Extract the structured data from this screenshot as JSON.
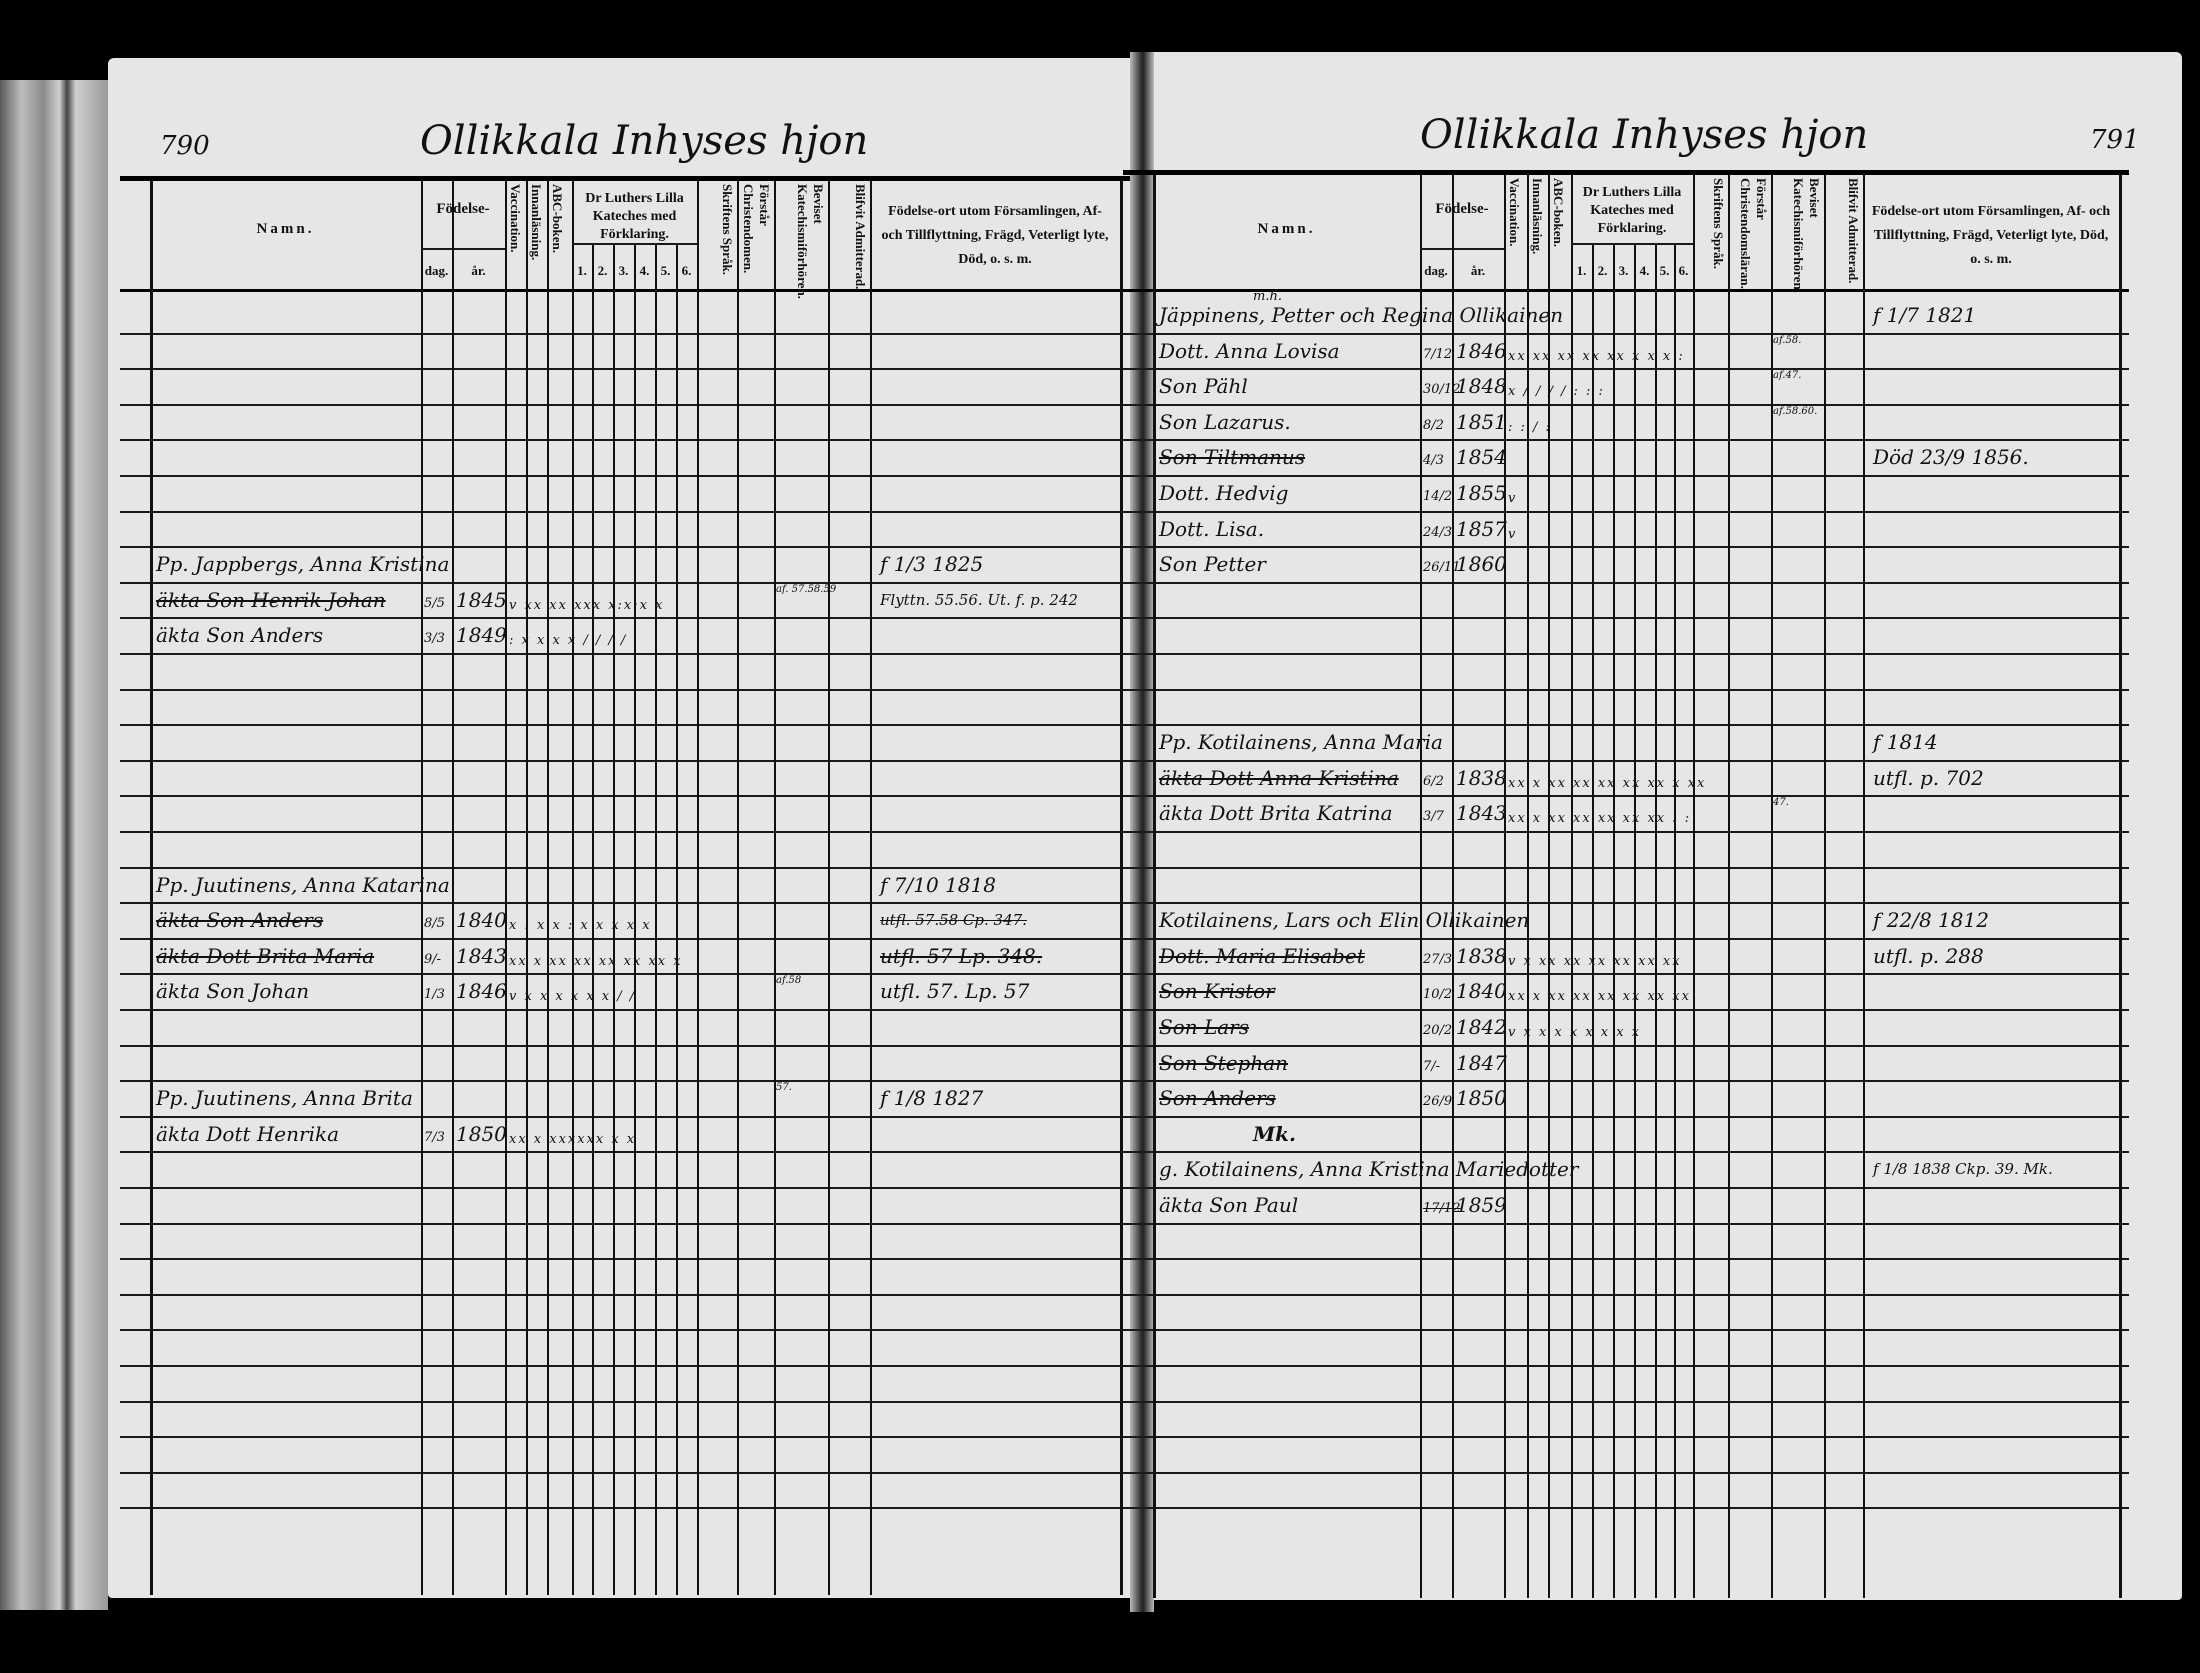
{
  "document": {
    "type": "parish catechetical register (husförhörslängd)",
    "paper_color": "#e6e6e4",
    "ink_color": "#111111"
  },
  "pages": [
    {
      "id": "left",
      "page_number": "790",
      "title": "Ollikkala Inhyses hjon",
      "headers": {
        "name": "Namn.",
        "birth": "Födelse-",
        "day": "dag.",
        "year": "år.",
        "vaccination": "Vaccination.",
        "reading": "Innanläsning.",
        "abc": "ABC-boken.",
        "catechism": "Dr Luthers Lilla Kateches med Förklaring.",
        "catechism_parts": [
          "1.",
          "2.",
          "3.",
          "4.",
          "5.",
          "6."
        ],
        "scripture": "Skriftens Språk.",
        "understands": "Förstår Christendomen.",
        "attended": "Beviset Katechismiförhören.",
        "admitted": "Blifvit Admitterad.",
        "remarks": "Födelse-ort utom Församlingen, Af- och Tillflyttning, Frägd, Veterligt lyte, Död, o. s. m."
      },
      "entries": [
        {
          "row": 7,
          "name": "Pp. Jappbergs, Anna Kristina",
          "remarks": "f 1/3 1825"
        },
        {
          "row": 8,
          "name": "äkta Son Henrik Johan",
          "struck": true,
          "day": "5/5",
          "year": "1845",
          "marks": "v xx xx xxx x:x:x x",
          "attended": "af. 57.58.59",
          "remarks": "Flyttn. 55.56. Ut. f. p. 242"
        },
        {
          "row": 9,
          "name": "äkta Son Anders",
          "day": "3/3",
          "year": "1849",
          "marks": ": x x x x / / / /"
        },
        {
          "row": 16,
          "name": "Pp. Juutinens, Anna Katarina",
          "remarks": "f 7/10 1818"
        },
        {
          "row": 17,
          "name": "äkta Son Anders",
          "struck": true,
          "day": "8/5",
          "year": "1840",
          "marks": "x : x x : x x x x x",
          "remarks": "utfl. 57.58 Cp. 347.",
          "remarks_struck": true
        },
        {
          "row": 18,
          "name": "äkta Dott Brita Maria",
          "struck": true,
          "day": "9/-",
          "year": "1843",
          "marks": "xx x xx xx xx xx xx x",
          "remarks": "utfl. 57 Lp. 348.",
          "remarks_struck": true
        },
        {
          "row": 19,
          "name": "äkta Son Johan",
          "day": "1/3",
          "year": "1846",
          "marks": "v x x x x x x / /",
          "attended": "af.58",
          "remarks": "utfl. 57. Lp. 57"
        },
        {
          "row": 22,
          "name": "Pp. Juutinens, Anna Brita",
          "attended": "57.",
          "remarks": "f 1/8 1827"
        },
        {
          "row": 23,
          "name": "äkta Dott Henrika",
          "day": "7/3",
          "year": "1850",
          "marks": "xx x xxxxxx x x"
        }
      ]
    },
    {
      "id": "right",
      "page_number": "791",
      "title": "Ollikkala Inhyses hjon",
      "headers": {
        "name": "Namn.",
        "birth": "Födelse-",
        "day": "dag.",
        "year": "år.",
        "vaccination": "Vaccination.",
        "reading": "Innanläsning.",
        "abc": "ABC-boken.",
        "catechism": "Dr Luthers Lilla Kateches med Förklaring.",
        "catechism_parts": [
          "1.",
          "2.",
          "3.",
          "4.",
          "5.",
          "6."
        ],
        "scripture": "Skriftens Språk.",
        "understands": "Förstår Christendomsläran.",
        "attended": "Beviset Katechismiförhören.",
        "admitted": "Blifvit Admitterad.",
        "remarks": "Födelse-ort utom Församlingen, Af- och Tillflyttning, Frägd, Veterligt lyte, Död, o. s. m."
      },
      "entries": [
        {
          "row": 0,
          "note_above": "m.h.",
          "name": "Jäppinens, Petter och Regina Ollikainen",
          "remarks": "f 1/7 1821"
        },
        {
          "row": 1,
          "name": "Dott. Anna Lovisa",
          "day": "7/12",
          "year": "1846",
          "marks": "xx xx xx xx xx x x x :",
          "attended": "af.58."
        },
        {
          "row": 2,
          "name": "Son Pähl",
          "day": "30/12",
          "year": "1848",
          "marks": "x / / / / : : :",
          "attended": "af.47."
        },
        {
          "row": 3,
          "name": "Son Lazarus.",
          "day": "8/2",
          "year": "1851",
          "marks": ": : / :",
          "attended": "af.58.60."
        },
        {
          "row": 4,
          "name": "Son Tiltmanus",
          "struck": true,
          "day": "4/3",
          "year": "1854",
          "remarks": "Död 23/9 1856."
        },
        {
          "row": 5,
          "name": "Dott. Hedvig",
          "day": "14/2",
          "year": "1855",
          "marks": "v"
        },
        {
          "row": 6,
          "name": "Dott. Lisa.",
          "day": "24/3",
          "year": "1857",
          "marks": "v"
        },
        {
          "row": 7,
          "name": "Son Petter",
          "day": "26/11",
          "year": "1860"
        },
        {
          "row": 12,
          "name": "Pp. Kotilainens, Anna Maria",
          "remarks": "f 1814"
        },
        {
          "row": 13,
          "name": "äkta Dott Anna Kristina",
          "struck": true,
          "day": "6/2",
          "year": "1838",
          "marks": "xx x xx xx xx xx xx x xx",
          "remarks": "utfl. p. 702"
        },
        {
          "row": 14,
          "name": "äkta Dott Brita Katrina",
          "day": "3/7",
          "year": "1843",
          "marks": "xx x xx xx xx xx xx : :",
          "attended": "47."
        },
        {
          "row": 17,
          "name": "Kotilainens, Lars och Elin Ollikainen",
          "remarks": "f 22/8 1812"
        },
        {
          "row": 18,
          "name": "Dott. Maria Elisabet",
          "struck": true,
          "day": "27/3",
          "year": "1838",
          "marks": "v x xx xx xx xx xx xx",
          "remarks": "utfl. p. 288"
        },
        {
          "row": 19,
          "name": "Son Kristor",
          "struck": true,
          "day": "10/2",
          "year": "1840",
          "marks": "xx x xx xx xx xx xx xx"
        },
        {
          "row": 20,
          "name": "Son Lars",
          "struck": true,
          "day": "20/2",
          "year": "1842",
          "marks": "v x x x x x x x x"
        },
        {
          "row": 21,
          "name": "Son Stephan",
          "struck": true,
          "day": "7/-",
          "year": "1847"
        },
        {
          "row": 22,
          "name": "Son Anders",
          "struck": true,
          "day": "26/9",
          "year": "1850"
        },
        {
          "row": 23,
          "name": "Mk.",
          "centered": true
        },
        {
          "row": 24,
          "name": "g. Kotilainens, Anna Kristina Mariedotter",
          "remarks": "f 1/8 1838 Ckp. 39.   Mk."
        },
        {
          "row": 25,
          "name": "äkta Son Paul",
          "day": "17/12",
          "day_struck": true,
          "year": "1859"
        }
      ]
    }
  ]
}
